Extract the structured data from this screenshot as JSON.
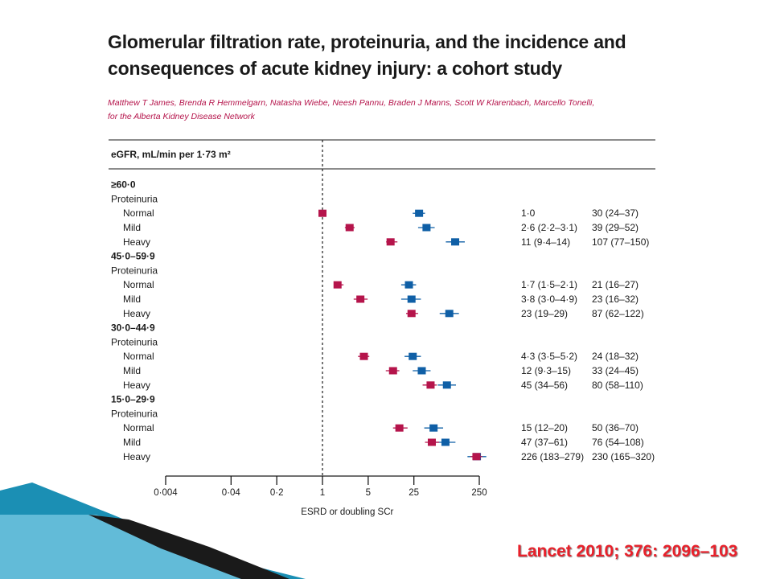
{
  "slide": {
    "title_line1": "Glomerular filtration rate, proteinuria, and the incidence and",
    "title_line2": "consequences of acute kidney injury: a cohort study",
    "authors_line1": "Matthew T James, Brenda R Hemmelgarn, Natasha Wiebe, Neesh Pannu, Braden J Manns, Scott W Klarenbach, Marcello Tonelli,",
    "authors_line2": "for the Alberta Kidney Disease Network",
    "citation": "Lancet 2010; 376: 2096–103"
  },
  "colors": {
    "red_marker": "#b5144b",
    "blue_marker": "#0f5fa6",
    "deco_dark": "#1a1a1a",
    "deco_teal": "#1b8fb4",
    "citation": "#e8212b"
  },
  "chart_data": {
    "type": "forest",
    "scale": "log",
    "header": "eGFR, mL/min per 1·73 m²",
    "xlabel": "ESRD or doubling SCr",
    "xticks": [
      {
        "value": 0.004,
        "label": "0·004"
      },
      {
        "value": 0.04,
        "label": "0·04"
      },
      {
        "value": 0.2,
        "label": "0·2"
      },
      {
        "value": 1,
        "label": "1"
      },
      {
        "value": 5,
        "label": "5"
      },
      {
        "value": 25,
        "label": "25"
      },
      {
        "value": 250,
        "label": "250"
      }
    ],
    "reference_line": 1,
    "groups": [
      {
        "name": "≥60·0",
        "subheader": "Proteinuria",
        "rows": [
          {
            "label": "Normal",
            "red": {
              "est": 1.0,
              "lo": 1.0,
              "hi": 1.0
            },
            "blue": {
              "est": 30,
              "lo": 24,
              "hi": 37
            },
            "red_text": "1·0",
            "blue_text": "30 (24–37)"
          },
          {
            "label": "Mild",
            "red": {
              "est": 2.6,
              "lo": 2.2,
              "hi": 3.1
            },
            "blue": {
              "est": 39,
              "lo": 29,
              "hi": 52
            },
            "red_text": "2·6 (2·2–3·1)",
            "blue_text": "39 (29–52)"
          },
          {
            "label": "Heavy",
            "red": {
              "est": 11,
              "lo": 9.4,
              "hi": 14
            },
            "blue": {
              "est": 107,
              "lo": 77,
              "hi": 150
            },
            "red_text": "11 (9·4–14)",
            "blue_text": "107 (77–150)"
          }
        ]
      },
      {
        "name": "45·0–59·9",
        "subheader": "Proteinuria",
        "rows": [
          {
            "label": "Normal",
            "red": {
              "est": 1.7,
              "lo": 1.5,
              "hi": 2.1
            },
            "blue": {
              "est": 21,
              "lo": 16,
              "hi": 27
            },
            "red_text": "1·7 (1·5–2·1)",
            "blue_text": "21 (16–27)"
          },
          {
            "label": "Mild",
            "red": {
              "est": 3.8,
              "lo": 3.0,
              "hi": 4.9
            },
            "blue": {
              "est": 23,
              "lo": 16,
              "hi": 32
            },
            "red_text": "3·8 (3·0–4·9)",
            "blue_text": "23 (16–32)"
          },
          {
            "label": "Heavy",
            "red": {
              "est": 23,
              "lo": 19,
              "hi": 29
            },
            "blue": {
              "est": 87,
              "lo": 62,
              "hi": 122
            },
            "red_text": "23 (19–29)",
            "blue_text": "87 (62–122)"
          }
        ]
      },
      {
        "name": "30·0–44·9",
        "subheader": "Proteinuria",
        "rows": [
          {
            "label": "Normal",
            "red": {
              "est": 4.3,
              "lo": 3.5,
              "hi": 5.2
            },
            "blue": {
              "est": 24,
              "lo": 18,
              "hi": 32
            },
            "red_text": "4·3 (3·5–5·2)",
            "blue_text": "24 (18–32)"
          },
          {
            "label": "Mild",
            "red": {
              "est": 12,
              "lo": 9.3,
              "hi": 15
            },
            "blue": {
              "est": 33,
              "lo": 24,
              "hi": 45
            },
            "red_text": "12 (9·3–15)",
            "blue_text": "33 (24–45)"
          },
          {
            "label": "Heavy",
            "red": {
              "est": 45,
              "lo": 34,
              "hi": 56
            },
            "blue": {
              "est": 80,
              "lo": 58,
              "hi": 110
            },
            "red_text": "45 (34–56)",
            "blue_text": "80 (58–110)"
          }
        ]
      },
      {
        "name": "15·0–29·9",
        "subheader": "Proteinuria",
        "rows": [
          {
            "label": "Normal",
            "red": {
              "est": 15,
              "lo": 12,
              "hi": 20
            },
            "blue": {
              "est": 50,
              "lo": 36,
              "hi": 70
            },
            "red_text": "15 (12–20)",
            "blue_text": "50 (36–70)"
          },
          {
            "label": "Mild",
            "red": {
              "est": 47,
              "lo": 37,
              "hi": 61
            },
            "blue": {
              "est": 76,
              "lo": 54,
              "hi": 108
            },
            "red_text": "47 (37–61)",
            "blue_text": "76 (54–108)"
          },
          {
            "label": "Heavy",
            "red": {
              "est": 226,
              "lo": 183,
              "hi": 279
            },
            "blue": {
              "est": 230,
              "lo": 165,
              "hi": 320
            },
            "red_text": "226 (183–279)",
            "blue_text": "230 (165–320)"
          }
        ]
      }
    ]
  }
}
